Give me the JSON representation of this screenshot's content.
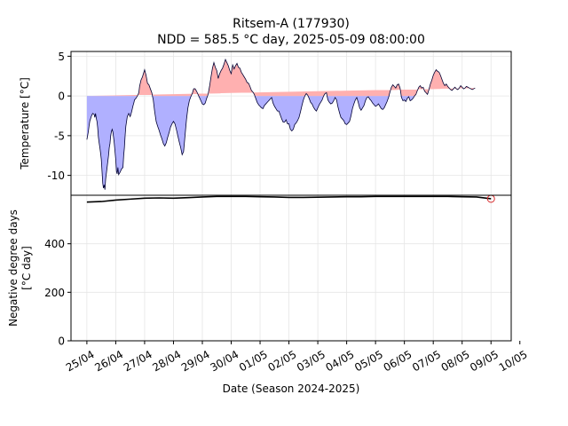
{
  "figure": {
    "title_line1": "Ritsem-A (177930)",
    "title_line2": "NDD = 585.5 °C day, 2025-05-09 08:00:00"
  },
  "chart_data": [
    {
      "type": "area",
      "ylabel": "Temperature [°C]",
      "ylim": [
        -12.5,
        5.6
      ],
      "yticks": [
        5,
        0,
        -5,
        -10
      ],
      "grid": true,
      "positive_color": "#ffb0b0",
      "negative_color": "#b0b0ff",
      "line_color": "#000033",
      "x_days": [
        0.0,
        0.1,
        0.2,
        0.3,
        0.4,
        0.5,
        0.6,
        0.7,
        0.8,
        1.0,
        1.1,
        1.2,
        1.3,
        1.4,
        1.5,
        1.55,
        1.6,
        1.7,
        1.8,
        1.9,
        2.0,
        2.1,
        2.2,
        2.3,
        2.4,
        2.5,
        2.6,
        2.8,
        3.0,
        3.1,
        3.2,
        3.3,
        3.4,
        3.5,
        3.6,
        3.7,
        3.8,
        4.0,
        4.1,
        4.2,
        4.3,
        4.4,
        4.6,
        4.8,
        5.0,
        5.1,
        5.2,
        5.3,
        5.4,
        5.5,
        5.6,
        5.8,
        6.0,
        6.1,
        6.2,
        6.3,
        6.4,
        6.5,
        6.6,
        6.8,
        7.0,
        7.2,
        7.3,
        7.5,
        7.7,
        7.9,
        8.0,
        8.2,
        8.4,
        8.6,
        8.8,
        9.0,
        9.2,
        9.4,
        9.6,
        9.8,
        10.0,
        10.2,
        10.4,
        10.6,
        10.8,
        11.0,
        11.2,
        11.4,
        11.6,
        11.8,
        12.0,
        12.2,
        12.4,
        12.6,
        12.8,
        13.0,
        13.2,
        13.4,
        13.6,
        13.8,
        14.0,
        14.2,
        14.4,
        14.6,
        14.8,
        15.0,
        15.2,
        15.4,
        15.6,
        15.8,
        16.0,
        16.2,
        16.4,
        16.6,
        16.8,
        17.0,
        17.2,
        17.4,
        17.6,
        17.8,
        18.0,
        18.2,
        18.4,
        18.6,
        18.8,
        19.0,
        19.2,
        19.4,
        19.6,
        19.8,
        20.0,
        20.2,
        20.4,
        20.6,
        20.8,
        21.0,
        21.2,
        21.4,
        21.6,
        21.8,
        22.0,
        22.2,
        22.4,
        22.6,
        22.8,
        23.0,
        23.2,
        23.4,
        23.6,
        23.8,
        24.0,
        24.2,
        24.4,
        24.6,
        24.8,
        25.0,
        25.2,
        25.4,
        25.6,
        25.8,
        26.0,
        26.2,
        26.4,
        26.6,
        26.8,
        27.0,
        27.2,
        27.4,
        27.6,
        27.8,
        28.0,
        28.2,
        28.4,
        28.6,
        28.8,
        29.0,
        29.2,
        29.4,
        29.6,
        29.8,
        30.0,
        30.2,
        30.4,
        30.6,
        30.8,
        31.0,
        31.2,
        31.4,
        31.6,
        31.8,
        32.0,
        32.2,
        32.4,
        32.6,
        32.8,
        33.0,
        33.2,
        33.4,
        33.6,
        33.8,
        34.0,
        34.2,
        34.4,
        34.6,
        34.8,
        35.0,
        35.2,
        35.4,
        35.6,
        35.8,
        36.0,
        36.2,
        36.4,
        36.6,
        36.8,
        37.0,
        37.2,
        37.4,
        37.6,
        37.8,
        38.0,
        38.2,
        38.4,
        38.6,
        38.8,
        39.0,
        39.2,
        39.4,
        39.6,
        39.8,
        40.0,
        40.2,
        40.4,
        40.6,
        40.8,
        41.0,
        41.2,
        41.4,
        41.6,
        41.8,
        42.0,
        42.2,
        42.4,
        42.6,
        42.8,
        43.0,
        43.2,
        43.4,
        43.6,
        43.8,
        44.0,
        44.2,
        44.4,
        44.6,
        44.8,
        45.0,
        45.2,
        45.4,
        45.6,
        45.8,
        46.0,
        46.2,
        46.4,
        46.6,
        46.8,
        47.0,
        47.2,
        47.4,
        47.6,
        47.8,
        48.0,
        48.2,
        48.4,
        48.6,
        48.8,
        49.0,
        49.2,
        49.4,
        49.6,
        49.8,
        50.0,
        50.2,
        50.4,
        50.6,
        50.8,
        51.0,
        51.2,
        51.4,
        51.6,
        51.8,
        52.0,
        52.2,
        52.4,
        52.6,
        52.8,
        53.0,
        53.2,
        53.4,
        53.6,
        53.8,
        54.0,
        54.2,
        54.4,
        54.6,
        54.8,
        55.0,
        55.2,
        55.4,
        55.6,
        55.8,
        56.0
      ],
      "temperature": [
        -5.5,
        -5.0,
        -4.5,
        -3.8,
        -3.2,
        -2.9,
        -2.6,
        -2.4,
        -2.2,
        -2.3,
        -2.7,
        -2.2,
        -2.8,
        -3.2,
        -4.0,
        -4.6,
        -5.2,
        -5.9,
        -6.5,
        -7.2,
        -8.0,
        -9.5,
        -11.0,
        -11.6,
        -11.2,
        -11.8,
        -10.5,
        -9.0,
        -7.5,
        -6.5,
        -6.0,
        -5.0,
        -4.5,
        -4.2,
        -4.5,
        -5.2,
        -6.0,
        -8.0,
        -9.5,
        -9.8,
        -9.0,
        -9.9,
        -9.6,
        -9.2,
        -9.0,
        -7.5,
        -6.5,
        -5.0,
        -3.8,
        -3.2,
        -2.6,
        -2.2,
        -2.6,
        -2.3,
        -2.0,
        -1.6,
        -1.2,
        -0.9,
        -0.5,
        -0.3,
        0.0,
        0.4,
        1.2,
        2.0,
        2.4,
        3.0,
        3.3,
        2.6,
        1.6,
        1.4,
        0.9,
        0.4,
        -0.5,
        -2.0,
        -3.2,
        -3.8,
        -4.3,
        -4.9,
        -5.4,
        -6.0,
        -6.3,
        -5.9,
        -5.2,
        -4.6,
        -3.9,
        -3.5,
        -3.2,
        -3.5,
        -4.2,
        -5.0,
        -5.8,
        -6.5,
        -7.4,
        -7.0,
        -5.0,
        -3.0,
        -1.5,
        -0.6,
        -0.1,
        0.3,
        0.9,
        0.9,
        0.6,
        0.2,
        -0.2,
        -0.6,
        -1.0,
        -1.1,
        -0.9,
        -0.3,
        0.2,
        1.2,
        2.4,
        3.5,
        4.2,
        3.6,
        3.2,
        2.2,
        2.8,
        3.2,
        3.5,
        4.0,
        4.6,
        4.2,
        3.8,
        3.2,
        2.8,
        3.9,
        3.4,
        3.8,
        4.1,
        3.6,
        3.5,
        3.0,
        2.7,
        2.4,
        2.1,
        1.7,
        1.6,
        1.2,
        0.7,
        0.5,
        0.2,
        -0.3,
        -0.8,
        -1.1,
        -1.3,
        -1.5,
        -1.6,
        -1.2,
        -1.0,
        -0.8,
        -0.6,
        -0.4,
        -0.2,
        -0.9,
        -1.3,
        -1.6,
        -1.9,
        -1.9,
        -2.4,
        -2.9,
        -3.3,
        -3.3,
        -3.0,
        -3.5,
        -3.5,
        -4.2,
        -4.4,
        -4.2,
        -3.6,
        -3.4,
        -3.1,
        -2.7,
        -2.0,
        -1.2,
        -0.5,
        0.0,
        0.3,
        0.1,
        -0.3,
        -0.8,
        -1.0,
        -1.4,
        -1.7,
        -1.9,
        -1.5,
        -1.1,
        -0.8,
        -0.5,
        0.0,
        0.3,
        0.4,
        -0.5,
        -0.8,
        -1.0,
        -0.9,
        -0.6,
        -0.2,
        -0.5,
        -1.4,
        -2.1,
        -2.7,
        -2.9,
        -3.1,
        -3.5,
        -3.6,
        -3.4,
        -3.2,
        -2.5,
        -1.6,
        -1.0,
        -0.5,
        -0.2,
        -0.8,
        -1.5,
        -1.8,
        -1.5,
        -1.2,
        -0.6,
        -0.2,
        -0.1,
        -0.4,
        -0.6,
        -0.9,
        -1.1,
        -1.3,
        -1.2,
        -1.0,
        -1.3,
        -1.6,
        -1.7,
        -1.5,
        -1.1,
        -0.7,
        -0.2,
        0.5,
        1.1,
        1.4,
        1.2,
        1.0,
        1.4,
        1.5,
        1.0,
        -0.2,
        -0.6,
        -0.5,
        -0.7,
        -0.3,
        -0.1,
        -0.6,
        -0.5,
        -0.3,
        0.0,
        0.2,
        0.7,
        1.1,
        1.3,
        1.0,
        1.1,
        0.6,
        0.4,
        0.2,
        0.8,
        1.5,
        2.0,
        2.6,
        3.0,
        3.3,
        3.1,
        3.0,
        2.6,
        2.1,
        1.6,
        1.3,
        1.5,
        1.2,
        1.0,
        0.8,
        0.7,
        0.9,
        1.1,
        0.9,
        0.8,
        1.0,
        1.3,
        1.1,
        0.9,
        1.0,
        1.2,
        1.1,
        1.0,
        0.9,
        0.8,
        0.9,
        1.0
      ]
    },
    {
      "type": "line",
      "xlabel": "Date (Season 2024-2025)",
      "ylabel_line1": "Negative degree days",
      "ylabel_line2": "[°C day]",
      "ylim": [
        0,
        600
      ],
      "yticks": [
        0,
        200,
        400
      ],
      "grid": true,
      "line_color": "#000000",
      "marker_color": "#d62728",
      "x_days": [
        0,
        2,
        4,
        6,
        8,
        10,
        12,
        14,
        16,
        18,
        20,
        22,
        24,
        26,
        28,
        30,
        32,
        34,
        36,
        38,
        40,
        42,
        44,
        46,
        48,
        50,
        52,
        54,
        56
      ],
      "ndd": [
        572,
        574,
        580,
        584,
        588,
        589,
        588,
        590,
        593,
        595,
        595,
        595,
        594,
        593,
        591,
        591,
        592,
        593,
        594,
        594,
        595,
        595,
        595,
        595,
        595,
        595,
        594,
        593,
        585.5
      ],
      "marker": {
        "x_days": 56,
        "ndd": 585.5
      },
      "xlim_days": [
        -2.2,
        58.8
      ],
      "xtick_days": [
        0,
        4,
        8,
        12,
        16,
        20,
        24,
        28,
        32,
        36,
        40,
        44,
        48,
        52,
        56
      ],
      "xtick_labels": [
        "25/04",
        "26/04",
        "27/04",
        "28/04",
        "29/04",
        "30/04",
        "01/05",
        "02/05",
        "03/05",
        "04/05",
        "05/05",
        "06/05",
        "07/05",
        "08/05",
        "09/05"
      ],
      "xtick_extra_label": "10/05"
    }
  ]
}
